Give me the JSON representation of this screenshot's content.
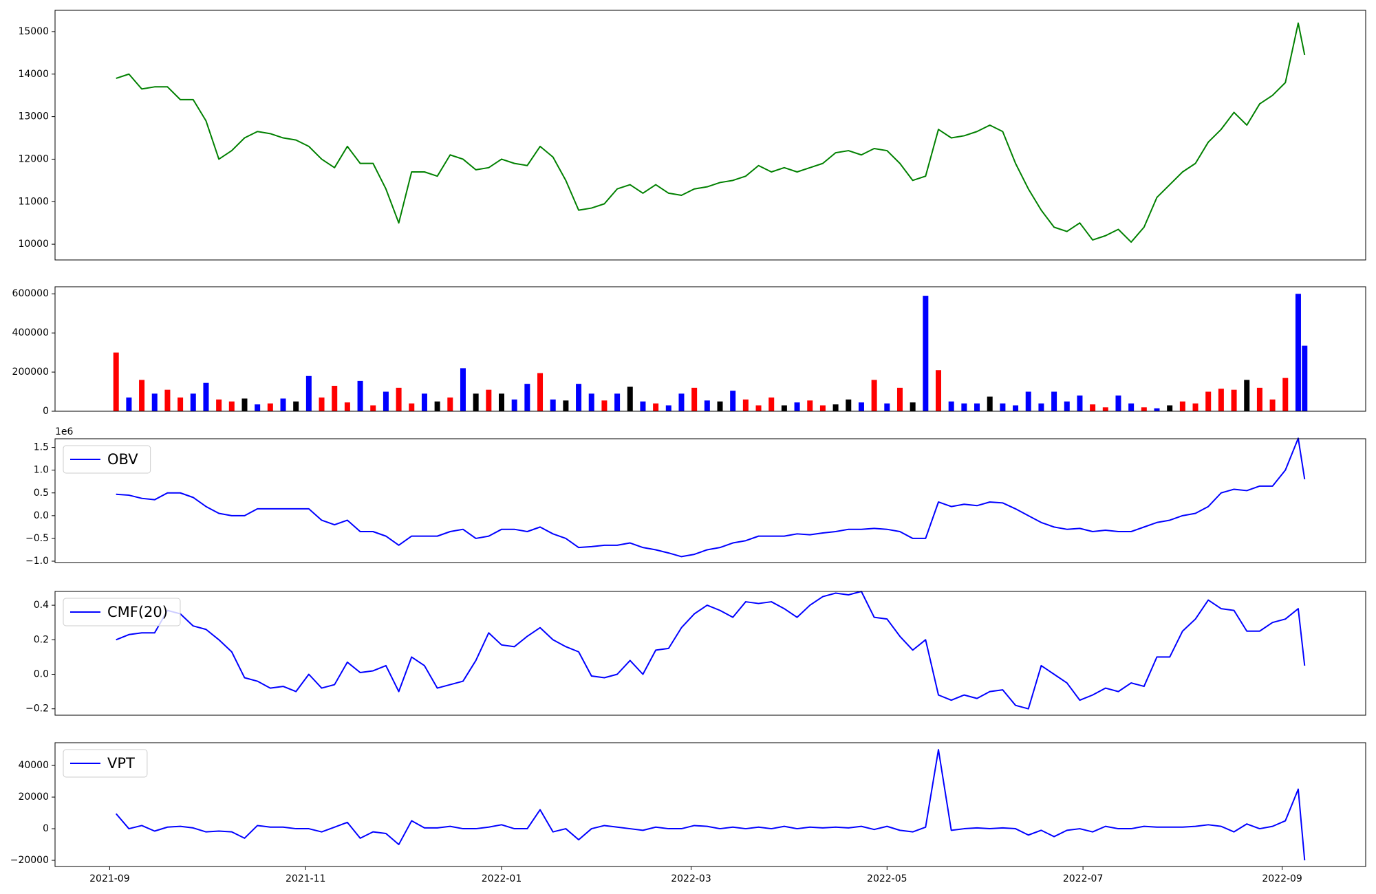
{
  "chart_data": [
    {
      "type": "line",
      "x": [
        2,
        6,
        10,
        14,
        18,
        22,
        26,
        30,
        34,
        38,
        42,
        46,
        50,
        54,
        58,
        62,
        66,
        70,
        74,
        78,
        82,
        86,
        90,
        94,
        98,
        102,
        106,
        110,
        114,
        118,
        122,
        126,
        130,
        134,
        138,
        142,
        146,
        150,
        154,
        158,
        162,
        166,
        170,
        174,
        178,
        182,
        186,
        190,
        194,
        198,
        202,
        206,
        210,
        214,
        218,
        222,
        226,
        230,
        234,
        238,
        242,
        246,
        250,
        254,
        258,
        262,
        266,
        270,
        274,
        278,
        282,
        286,
        290,
        294,
        298,
        302,
        306,
        310,
        314,
        318,
        322,
        326,
        330,
        334,
        338,
        342,
        346,
        350,
        354,
        358,
        362,
        366,
        370,
        372
      ],
      "xlim": [
        -17,
        391
      ],
      "ylim": [
        9630,
        15500
      ],
      "yticks": [
        10000,
        11000,
        12000,
        13000,
        14000,
        15000
      ],
      "series": [
        {
          "color": "green",
          "values": [
            13900,
            14000,
            13650,
            13700,
            13700,
            13400,
            13400,
            12900,
            12000,
            12200,
            12500,
            12650,
            12600,
            12500,
            12450,
            12300,
            12000,
            11800,
            12300,
            11900,
            11900,
            11300,
            10500,
            11700,
            11700,
            11600,
            12100,
            12000,
            11750,
            11800,
            12000,
            11900,
            11850,
            12300,
            12050,
            11500,
            10800,
            10850,
            10950,
            11300,
            11400,
            11200,
            11400,
            11200,
            11150,
            11300,
            11350,
            11450,
            11500,
            11600,
            11850,
            11700,
            11800,
            11700,
            11800,
            11900,
            12150,
            12200,
            12100,
            12250,
            12200,
            11900,
            11500,
            11600,
            12700,
            12500,
            12550,
            12650,
            12800,
            12650,
            11900,
            11300,
            10800,
            10400,
            10300,
            10500,
            10100,
            10200,
            10350,
            10050,
            10400,
            11100,
            11400,
            11700,
            11900,
            12400,
            12700,
            13100,
            12800,
            13300,
            13500,
            13800,
            15200,
            14450
          ]
        }
      ]
    },
    {
      "type": "bar",
      "x": [
        2,
        6,
        10,
        14,
        18,
        22,
        26,
        30,
        34,
        38,
        42,
        46,
        50,
        54,
        58,
        62,
        66,
        70,
        74,
        78,
        82,
        86,
        90,
        94,
        98,
        102,
        106,
        110,
        114,
        118,
        122,
        126,
        130,
        134,
        138,
        142,
        146,
        150,
        154,
        158,
        162,
        166,
        170,
        174,
        178,
        182,
        186,
        190,
        194,
        198,
        202,
        206,
        210,
        214,
        218,
        222,
        226,
        230,
        234,
        238,
        242,
        246,
        250,
        254,
        258,
        262,
        266,
        270,
        274,
        278,
        282,
        286,
        290,
        294,
        298,
        302,
        306,
        310,
        314,
        318,
        322,
        326,
        330,
        334,
        338,
        342,
        346,
        350,
        354,
        358,
        362,
        366,
        370,
        372
      ],
      "xlim": [
        -17,
        391
      ],
      "ylim": [
        0,
        636000
      ],
      "yticks": [
        0,
        200000,
        400000,
        600000
      ],
      "values": [
        300000,
        70000,
        160000,
        90000,
        110000,
        70000,
        90000,
        145000,
        60000,
        50000,
        65000,
        35000,
        40000,
        65000,
        50000,
        180000,
        70000,
        130000,
        45000,
        155000,
        30000,
        100000,
        120000,
        40000,
        90000,
        50000,
        70000,
        220000,
        90000,
        110000,
        90000,
        60000,
        140000,
        195000,
        60000,
        55000,
        140000,
        90000,
        55000,
        90000,
        125000,
        50000,
        40000,
        30000,
        90000,
        120000,
        55000,
        50000,
        105000,
        60000,
        30000,
        70000,
        30000,
        45000,
        55000,
        30000,
        35000,
        60000,
        45000,
        160000,
        40000,
        120000,
        45000,
        590000,
        210000,
        50000,
        40000,
        40000,
        75000,
        40000,
        30000,
        100000,
        40000,
        100000,
        50000,
        80000,
        35000,
        20000,
        80000,
        40000,
        20000,
        15000,
        30000,
        50000,
        40000,
        100000,
        115000,
        110000,
        160000,
        120000,
        60000,
        170000,
        600000,
        335000
      ],
      "colors": [
        "red",
        "blue",
        "red",
        "blue",
        "red",
        "red",
        "blue",
        "blue",
        "red",
        "red",
        "black",
        "blue",
        "red",
        "blue",
        "black",
        "blue",
        "red",
        "red",
        "red",
        "blue",
        "red",
        "blue",
        "red",
        "red",
        "blue",
        "black",
        "red",
        "blue",
        "black",
        "red",
        "black",
        "blue",
        "blue",
        "red",
        "blue",
        "black",
        "blue",
        "blue",
        "red",
        "blue",
        "black",
        "blue",
        "red",
        "blue",
        "blue",
        "red",
        "blue",
        "black",
        "blue",
        "red",
        "red",
        "red",
        "black",
        "blue",
        "red",
        "red",
        "black",
        "black",
        "blue",
        "red",
        "blue",
        "red",
        "black",
        "blue",
        "red",
        "blue",
        "blue",
        "blue",
        "black",
        "blue",
        "blue",
        "blue",
        "blue",
        "blue",
        "blue",
        "blue",
        "red",
        "red",
        "blue",
        "blue",
        "red",
        "blue",
        "black",
        "red",
        "red",
        "red",
        "red",
        "red",
        "black",
        "red",
        "red",
        "red",
        "blue",
        "blue"
      ]
    },
    {
      "type": "line",
      "offset_label": "1e6",
      "legend": "upper left",
      "x": [
        2,
        6,
        10,
        14,
        18,
        22,
        26,
        30,
        34,
        38,
        42,
        46,
        50,
        54,
        58,
        62,
        66,
        70,
        74,
        78,
        82,
        86,
        90,
        94,
        98,
        102,
        106,
        110,
        114,
        118,
        122,
        126,
        130,
        134,
        138,
        142,
        146,
        150,
        154,
        158,
        162,
        166,
        170,
        174,
        178,
        182,
        186,
        190,
        194,
        198,
        202,
        206,
        210,
        214,
        218,
        222,
        226,
        230,
        234,
        238,
        242,
        246,
        250,
        254,
        258,
        262,
        266,
        270,
        274,
        278,
        282,
        286,
        290,
        294,
        298,
        302,
        306,
        310,
        314,
        318,
        322,
        326,
        330,
        334,
        338,
        342,
        346,
        350,
        354,
        358,
        362,
        366,
        370,
        372
      ],
      "xlim": [
        -17,
        391
      ],
      "ylim": [
        -1.03,
        1.69
      ],
      "yticks": [
        {
          "value": -1,
          "label": "−1.0"
        },
        {
          "value": -0.5,
          "label": "−0.5"
        },
        {
          "value": 0,
          "label": "0.0"
        },
        0.5,
        {
          "value": 1,
          "label": "1.0"
        },
        1.5
      ],
      "series": [
        {
          "name": "OBV",
          "color": "blue",
          "values": [
            0.47,
            0.45,
            0.38,
            0.35,
            0.5,
            0.5,
            0.4,
            0.2,
            0.05,
            0.0,
            0.0,
            0.15,
            0.15,
            0.15,
            0.15,
            0.15,
            -0.1,
            -0.2,
            -0.1,
            -0.35,
            -0.35,
            -0.45,
            -0.65,
            -0.45,
            -0.45,
            -0.45,
            -0.35,
            -0.3,
            -0.5,
            -0.45,
            -0.3,
            -0.3,
            -0.35,
            -0.25,
            -0.4,
            -0.5,
            -0.7,
            -0.68,
            -0.65,
            -0.65,
            -0.6,
            -0.7,
            -0.75,
            -0.82,
            -0.9,
            -0.85,
            -0.75,
            -0.7,
            -0.6,
            -0.55,
            -0.45,
            -0.45,
            -0.45,
            -0.4,
            -0.42,
            -0.38,
            -0.35,
            -0.3,
            -0.3,
            -0.28,
            -0.3,
            -0.35,
            -0.5,
            -0.5,
            0.3,
            0.2,
            0.25,
            0.22,
            0.3,
            0.28,
            0.15,
            0.0,
            -0.15,
            -0.25,
            -0.3,
            -0.28,
            -0.35,
            -0.32,
            -0.35,
            -0.35,
            -0.25,
            -0.15,
            -0.1,
            0.0,
            0.05,
            0.2,
            0.5,
            0.58,
            0.55,
            0.65,
            0.65,
            1.0,
            1.7,
            0.8
          ]
        }
      ]
    },
    {
      "type": "line",
      "legend": "upper left",
      "x": [
        2,
        6,
        10,
        14,
        18,
        22,
        26,
        30,
        34,
        38,
        42,
        46,
        50,
        54,
        58,
        62,
        66,
        70,
        74,
        78,
        82,
        86,
        90,
        94,
        98,
        102,
        106,
        110,
        114,
        118,
        122,
        126,
        130,
        134,
        138,
        142,
        146,
        150,
        154,
        158,
        162,
        166,
        170,
        174,
        178,
        182,
        186,
        190,
        194,
        198,
        202,
        206,
        210,
        214,
        218,
        222,
        226,
        230,
        234,
        238,
        242,
        246,
        250,
        254,
        258,
        262,
        266,
        270,
        274,
        278,
        282,
        286,
        290,
        294,
        298,
        302,
        306,
        310,
        314,
        318,
        322,
        326,
        330,
        334,
        338,
        342,
        346,
        350,
        354,
        358,
        362,
        366,
        370,
        372
      ],
      "xlim": [
        -17,
        391
      ],
      "ylim": [
        -0.237,
        0.48
      ],
      "yticks": [
        {
          "value": -0.2,
          "label": "−0.2"
        },
        {
          "value": 0,
          "label": "0.0"
        },
        0.2,
        0.4
      ],
      "series": [
        {
          "name": "CMF(20)",
          "color": "blue",
          "values": [
            0.2,
            0.23,
            0.24,
            0.24,
            0.37,
            0.35,
            0.28,
            0.26,
            0.2,
            0.13,
            -0.02,
            -0.04,
            -0.08,
            -0.07,
            -0.1,
            0.0,
            -0.08,
            -0.06,
            0.07,
            0.01,
            0.02,
            0.05,
            -0.1,
            0.1,
            0.05,
            -0.08,
            -0.06,
            -0.04,
            0.08,
            0.24,
            0.17,
            0.16,
            0.22,
            0.27,
            0.2,
            0.16,
            0.13,
            -0.01,
            -0.02,
            0.0,
            0.08,
            0.0,
            0.14,
            0.15,
            0.27,
            0.35,
            0.4,
            0.37,
            0.33,
            0.42,
            0.41,
            0.42,
            0.38,
            0.33,
            0.4,
            0.45,
            0.47,
            0.46,
            0.48,
            0.33,
            0.32,
            0.22,
            0.14,
            0.2,
            -0.12,
            -0.15,
            -0.12,
            -0.14,
            -0.1,
            -0.09,
            -0.18,
            -0.2,
            0.05,
            0.0,
            -0.05,
            -0.15,
            -0.12,
            -0.08,
            -0.1,
            -0.05,
            -0.07,
            0.1,
            0.1,
            0.25,
            0.32,
            0.43,
            0.38,
            0.37,
            0.25,
            0.25,
            0.3,
            0.32,
            0.38,
            0.05
          ]
        }
      ]
    },
    {
      "type": "line",
      "legend": "upper left",
      "x": [
        2,
        6,
        10,
        14,
        18,
        22,
        26,
        30,
        34,
        38,
        42,
        46,
        50,
        54,
        58,
        62,
        66,
        70,
        74,
        78,
        82,
        86,
        90,
        94,
        98,
        102,
        106,
        110,
        114,
        118,
        122,
        126,
        130,
        134,
        138,
        142,
        146,
        150,
        154,
        158,
        162,
        166,
        170,
        174,
        178,
        182,
        186,
        190,
        194,
        198,
        202,
        206,
        210,
        214,
        218,
        222,
        226,
        230,
        234,
        238,
        242,
        246,
        250,
        254,
        258,
        262,
        266,
        270,
        274,
        278,
        282,
        286,
        290,
        294,
        298,
        302,
        306,
        310,
        314,
        318,
        322,
        326,
        330,
        334,
        338,
        342,
        346,
        350,
        354,
        358,
        362,
        366,
        370,
        372
      ],
      "xlim": [
        -17,
        391
      ],
      "ylim": [
        -23900,
        54400
      ],
      "yticks": [
        {
          "value": -20000,
          "label": "−20000"
        },
        0,
        20000,
        40000
      ],
      "xticks": [
        {
          "value": 0,
          "label": "2021-09"
        },
        {
          "value": 61,
          "label": "2021-11"
        },
        {
          "value": 122,
          "label": "2022-01"
        },
        {
          "value": 181,
          "label": "2022-03"
        },
        {
          "value": 242,
          "label": "2022-05"
        },
        {
          "value": 303,
          "label": "2022-07"
        },
        {
          "value": 365,
          "label": "2022-09"
        }
      ],
      "series": [
        {
          "name": "VPT",
          "color": "blue",
          "values": [
            9500,
            0,
            2000,
            -1500,
            1000,
            1500,
            500,
            -2000,
            -1500,
            -2000,
            -6000,
            2000,
            1000,
            1000,
            0,
            0,
            -2000,
            1000,
            4000,
            -6000,
            -2000,
            -3000,
            -10000,
            5000,
            500,
            500,
            1500,
            0,
            0,
            1000,
            2500,
            0,
            0,
            12000,
            -2000,
            0,
            -7000,
            0,
            2000,
            1000,
            0,
            -1000,
            1000,
            0,
            0,
            2000,
            1500,
            0,
            1000,
            0,
            1000,
            0,
            1500,
            0,
            1000,
            500,
            1000,
            500,
            1500,
            -500,
            1500,
            -1000,
            -2000,
            1000,
            50000,
            -1000,
            0,
            500,
            0,
            500,
            0,
            -4000,
            -1000,
            -5000,
            -1000,
            0,
            -2000,
            1500,
            0,
            0,
            1500,
            1000,
            1000,
            1000,
            1500,
            2500,
            1500,
            -2000,
            3000,
            0,
            1500,
            5000,
            25000,
            -20000
          ]
        }
      ]
    }
  ]
}
